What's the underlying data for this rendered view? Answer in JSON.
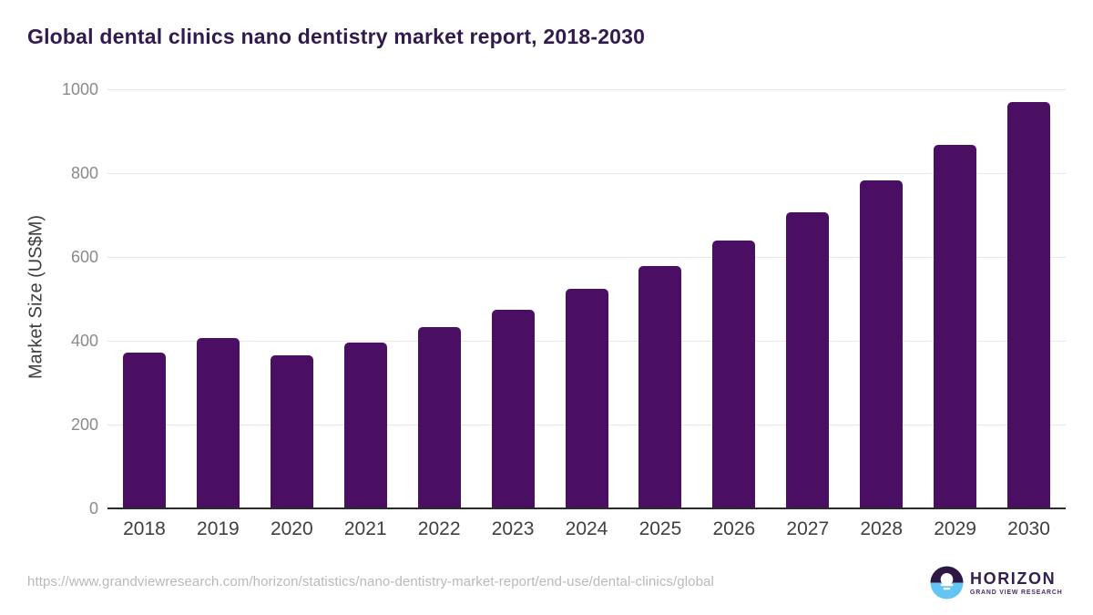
{
  "title": "Global dental clinics nano dentistry market report, 2018-2030",
  "footer": {
    "source_url": "https://www.grandviewresearch.com/horizon/statistics/nano-dentistry-market-report/end-use/dental-clinics/global",
    "logo": {
      "name": "HORIZON",
      "subtitle": "GRAND VIEW RESEARCH"
    }
  },
  "colors": {
    "bar": "#4a0e63",
    "title": "#311b4d",
    "axis_label": "#3d3d3d",
    "tick_label": "#8a8a8a",
    "year_label": "#3f3f3f",
    "gridline": "#e8e8e8",
    "axis_line": "#2b2b2b",
    "url_text": "#b9b9b9",
    "logo_dark_purple": "#2d1845",
    "logo_light_blue": "#62c5f3"
  },
  "chart_data": {
    "type": "bar",
    "title": "Global dental clinics nano dentistry market report, 2018-2030",
    "categories": [
      "2018",
      "2019",
      "2020",
      "2021",
      "2022",
      "2023",
      "2024",
      "2025",
      "2026",
      "2027",
      "2028",
      "2029",
      "2030"
    ],
    "values": [
      371,
      406,
      365,
      395,
      432,
      475,
      523,
      578,
      640,
      707,
      783,
      868,
      970
    ],
    "xlabel": "",
    "ylabel": "Market Size (US$M)",
    "ylim": [
      0,
      1000
    ],
    "yticks": [
      0,
      200,
      400,
      600,
      800,
      1000
    ],
    "grid": "horizontal",
    "legend": "none",
    "bar_color": "#4a0e63"
  }
}
